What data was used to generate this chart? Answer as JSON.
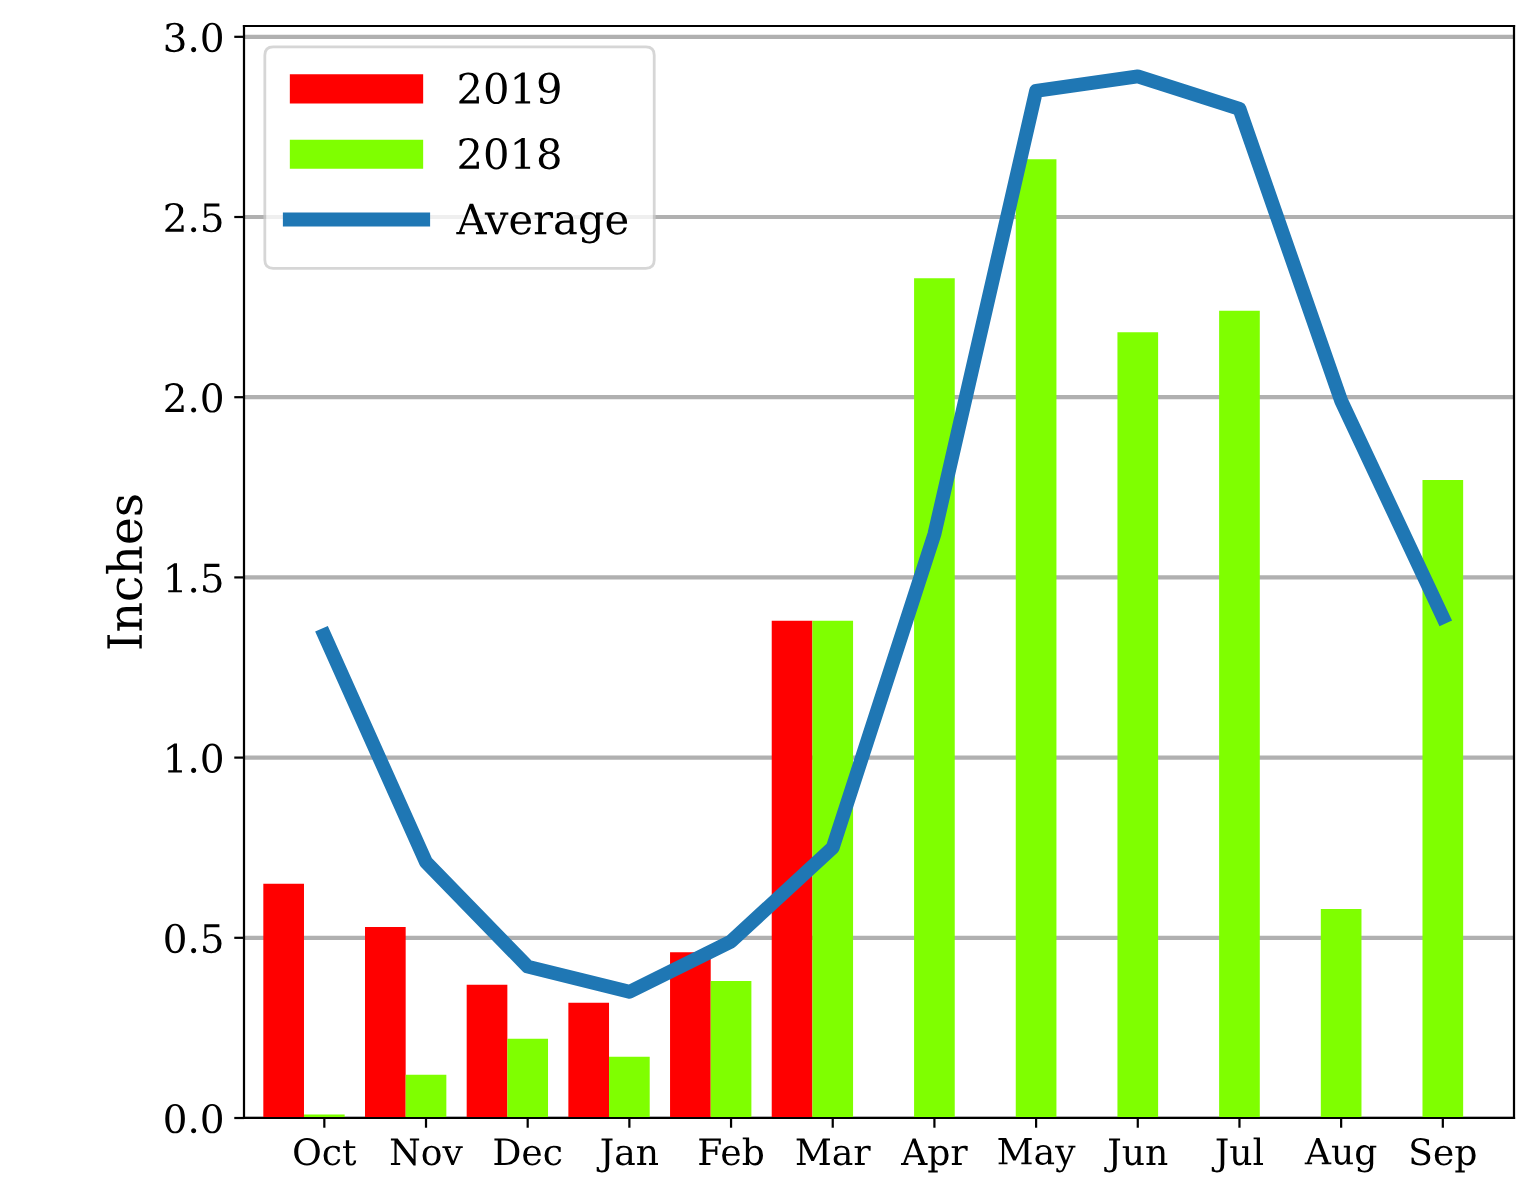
{
  "chart_data": {
    "type": "bar",
    "ylabel": "Inches",
    "categories": [
      "Oct",
      "Nov",
      "Dec",
      "Jan",
      "Feb",
      "Mar",
      "Apr",
      "May",
      "Jun",
      "Jul",
      "Aug",
      "Sep"
    ],
    "series": [
      {
        "name": "2019",
        "color": "#ff0000",
        "values": [
          0.65,
          0.53,
          0.37,
          0.32,
          0.46,
          1.38,
          null,
          null,
          null,
          null,
          null,
          null
        ]
      },
      {
        "name": "2018",
        "color": "#7fff00",
        "values": [
          0.01,
          0.12,
          0.22,
          0.17,
          0.38,
          1.38,
          2.33,
          2.66,
          2.18,
          2.24,
          0.58,
          1.77
        ]
      },
      {
        "name": "Average",
        "type": "line",
        "color": "#1f77b4",
        "values": [
          1.34,
          0.71,
          0.42,
          0.35,
          0.49,
          0.75,
          1.62,
          2.85,
          2.89,
          2.8,
          1.99,
          1.39
        ]
      }
    ],
    "ylim": [
      0,
      3.03
    ],
    "yticks": [
      {
        "value": 0,
        "label": "0.0"
      },
      0.5,
      {
        "value": 1,
        "label": "1.0"
      },
      1.5,
      {
        "value": 2,
        "label": "2.0"
      },
      2.5,
      {
        "value": 3,
        "label": "3.0"
      }
    ],
    "grid": "y",
    "legend": "top left",
    "marker": "none",
    "line_style": "solid"
  }
}
